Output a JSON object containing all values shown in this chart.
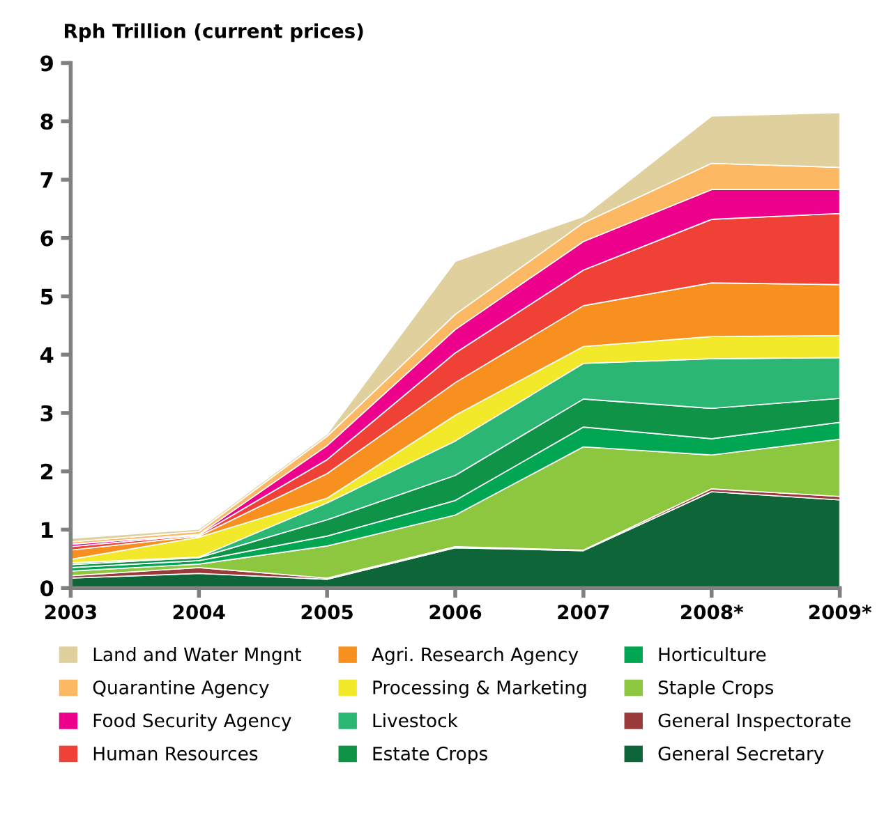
{
  "chart_data": {
    "type": "area",
    "stacked": true,
    "ylabel": "Rph Trillion (current prices)",
    "categories": [
      "2003",
      "2004",
      "2005",
      "2006",
      "2007",
      "2008*",
      "2009*"
    ],
    "ylim": [
      0,
      9
    ],
    "yticks": [
      0,
      1,
      2,
      3,
      4,
      5,
      6,
      7,
      8,
      9
    ],
    "grid": false,
    "legend": "bottom",
    "series": [
      {
        "name": "General Secretary",
        "color": "#0e6638",
        "values": [
          0.17,
          0.25,
          0.15,
          0.69,
          0.64,
          1.65,
          1.51
        ]
      },
      {
        "name": "General Inspectorate",
        "color": "#9b3a3a",
        "values": [
          0.04,
          0.1,
          0.02,
          0.02,
          0.01,
          0.05,
          0.06
        ]
      },
      {
        "name": "Staple Crops",
        "color": "#8dc63f",
        "values": [
          0.08,
          0.06,
          0.55,
          0.54,
          1.77,
          0.58,
          0.98
        ]
      },
      {
        "name": "Horticulture",
        "color": "#00a651",
        "values": [
          0.06,
          0.06,
          0.17,
          0.25,
          0.34,
          0.28,
          0.29
        ]
      },
      {
        "name": "Estate Crops",
        "color": "#0f9346",
        "values": [
          0.05,
          0.05,
          0.28,
          0.43,
          0.48,
          0.52,
          0.41
        ]
      },
      {
        "name": "Livestock",
        "color": "#2bb673",
        "values": [
          0.03,
          0.01,
          0.29,
          0.59,
          0.61,
          0.85,
          0.7
        ]
      },
      {
        "name": "Processing & Marketing",
        "color": "#f2e92a",
        "values": [
          0.06,
          0.34,
          0.08,
          0.44,
          0.29,
          0.38,
          0.38
        ]
      },
      {
        "name": "Agri. Research Agency",
        "color": "#f7901e",
        "values": [
          0.16,
          0.02,
          0.42,
          0.56,
          0.7,
          0.92,
          0.87
        ]
      },
      {
        "name": "Human Resources",
        "color": "#ef4136",
        "values": [
          0.06,
          0.02,
          0.24,
          0.51,
          0.61,
          1.09,
          1.22
        ]
      },
      {
        "name": "Food Security Agency",
        "color": "#ec008c",
        "values": [
          0.04,
          0.01,
          0.24,
          0.4,
          0.49,
          0.51,
          0.41
        ]
      },
      {
        "name": "Quarantine Agency",
        "color": "#fdb863",
        "values": [
          0.04,
          0.05,
          0.16,
          0.26,
          0.32,
          0.45,
          0.38
        ]
      },
      {
        "name": "Land and Water Mngnt",
        "color": "#e0d09e",
        "values": [
          0.06,
          0.04,
          0.04,
          0.91,
          0.11,
          0.81,
          0.94
        ]
      }
    ]
  }
}
